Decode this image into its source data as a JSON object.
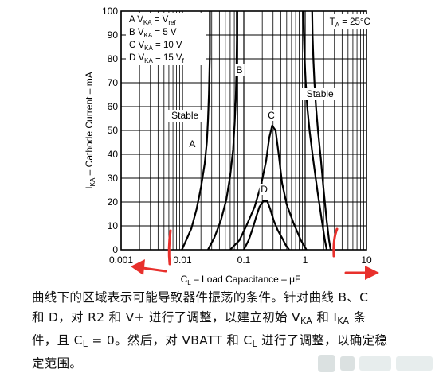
{
  "chart_data": {
    "type": "line",
    "x_scale": "log",
    "xlim": [
      0.001,
      10
    ],
    "ylim": [
      0,
      100
    ],
    "grid": true,
    "xlabel": "C",
    "xlabel_sub": "L",
    "xlabel_rest": " – Load Capacitance – μF",
    "ylabel": "I",
    "ylabel_sub": "KA",
    "ylabel_rest": " – Cathode Current – mA",
    "x_ticks": [
      0.001,
      0.01,
      0.1,
      1,
      10
    ],
    "x_tick_labels": [
      "0.001",
      "0.01",
      "0.1",
      "1",
      "10"
    ],
    "y_ticks": [
      0,
      10,
      20,
      30,
      40,
      50,
      60,
      70,
      80,
      90,
      100
    ],
    "y_tick_labels": [
      "0",
      "10",
      "20",
      "30",
      "40",
      "50",
      "60",
      "70",
      "80",
      "90",
      "100"
    ],
    "annotation_ta": "T",
    "annotation_ta_sub": "A",
    "annotation_ta_rest": " = 25°C",
    "legend": [
      {
        "p": "A V",
        "s": "KA",
        "r": " = V",
        "s2": "ref"
      },
      {
        "p": "B V",
        "s": "KA",
        "r": " = 5 V",
        "s2": ""
      },
      {
        "p": "C V",
        "s": "KA",
        "r": " = 10 V",
        "s2": ""
      },
      {
        "p": "D V",
        "s": "KA",
        "r": " = 15 V",
        "s2": "f"
      }
    ],
    "region_labels": [
      {
        "text": "Stable",
        "x": 0.011,
        "y": 55
      },
      {
        "text": "Stable",
        "x": 1.75,
        "y": 64
      }
    ],
    "curve_labels": [
      {
        "text": "A",
        "x": 0.0145,
        "y": 43
      },
      {
        "text": "B",
        "x": 0.085,
        "y": 74
      },
      {
        "text": "C",
        "x": 0.28,
        "y": 55
      },
      {
        "text": "D",
        "x": 0.215,
        "y": 24
      }
    ],
    "series": [
      {
        "name": "A",
        "x": [
          0.0098,
          0.0115,
          0.014,
          0.017,
          0.02,
          0.023,
          0.025,
          0.026,
          0.027,
          0.028,
          0.028
        ],
        "y": [
          0,
          4,
          9,
          17,
          26,
          36,
          45,
          54,
          65,
          82,
          100
        ]
      },
      {
        "name": "B",
        "x": [
          0.026,
          0.033,
          0.042,
          0.052,
          0.06,
          0.067,
          0.071,
          0.074,
          0.076,
          0.077,
          0.077
        ],
        "y": [
          0,
          5,
          12,
          21,
          31,
          42,
          53,
          63,
          75,
          88,
          100
        ]
      },
      {
        "name": "C",
        "x": [
          0.06,
          0.085,
          0.11,
          0.15,
          0.19,
          0.23,
          0.26,
          0.29,
          0.33,
          0.37,
          0.42,
          0.5,
          0.65,
          0.85,
          1.05
        ],
        "y": [
          0,
          4,
          10,
          18,
          27,
          37,
          47,
          52,
          50,
          40,
          28,
          19,
          11,
          4,
          0
        ]
      },
      {
        "name": "D",
        "x": [
          0.1,
          0.12,
          0.14,
          0.16,
          0.18,
          0.21,
          0.24,
          0.27,
          0.31,
          0.36,
          0.42,
          0.48,
          0.55
        ],
        "y": [
          0,
          4,
          9,
          14,
          18,
          20.5,
          20.5,
          17,
          12,
          8,
          5,
          2,
          0
        ]
      },
      {
        "name": "C/D right",
        "x": [
          0.93,
          0.95,
          0.98,
          1.02,
          1.08,
          1.18,
          1.35,
          1.6,
          1.9,
          2.1,
          2.25
        ],
        "y": [
          100,
          90,
          80,
          70,
          60,
          50,
          38,
          24,
          11,
          4,
          0
        ]
      },
      {
        "name": "B right",
        "x": [
          1.3,
          1.32,
          1.36,
          1.42,
          1.5,
          1.62,
          1.8,
          2.0,
          2.25,
          2.45,
          2.6
        ],
        "y": [
          100,
          90,
          80,
          70,
          60,
          50,
          38,
          25,
          12,
          4,
          0
        ]
      }
    ]
  },
  "caption": {
    "l1": "曲线下的区域表示可能导致器件振荡的条件。针对曲线 B、C",
    "l2a": "和 D，对 R2 和 V+ 进行了调整，以建立初始 V",
    "l2b": "KA",
    "l2c": " 和 I",
    "l2d": "KA",
    "l2e": " 条",
    "l3a": "件，且 C",
    "l3b": "L",
    "l3c": " = 0。然后，对 VBATT 和 C",
    "l3d": "L",
    "l3e": " 进行了调整，以确定稳",
    "l4": "定范围。"
  },
  "colors": {
    "arrow": "#e8302c",
    "curve": "#000000",
    "grid": "#000000"
  }
}
